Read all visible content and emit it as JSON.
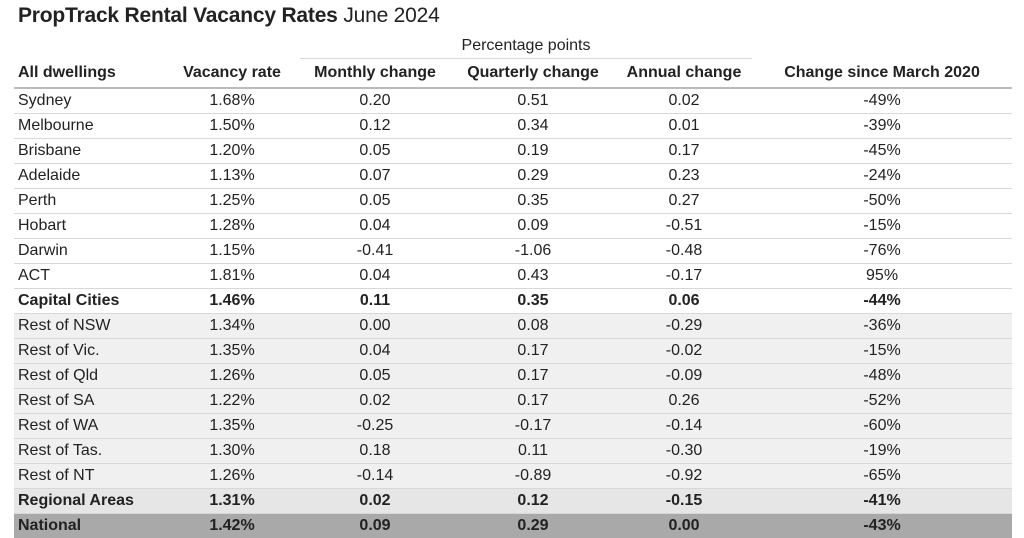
{
  "title": {
    "bold": "PropTrack Rental Vacancy Rates",
    "rest": "June 2024"
  },
  "group_header": "Percentage points",
  "columns": [
    "All dwellings",
    "Vacancy rate",
    "Monthly change",
    "Quarterly change",
    "Annual change",
    "Change since March 2020"
  ],
  "capital_rows": [
    [
      "Sydney",
      "1.68%",
      "0.20",
      "0.51",
      "0.02",
      "-49%"
    ],
    [
      "Melbourne",
      "1.50%",
      "0.12",
      "0.34",
      "0.01",
      "-39%"
    ],
    [
      "Brisbane",
      "1.20%",
      "0.05",
      "0.19",
      "0.17",
      "-45%"
    ],
    [
      "Adelaide",
      "1.13%",
      "0.07",
      "0.29",
      "0.23",
      "-24%"
    ],
    [
      "Perth",
      "1.25%",
      "0.05",
      "0.35",
      "0.27",
      "-50%"
    ],
    [
      "Hobart",
      "1.28%",
      "0.04",
      "0.09",
      "-0.51",
      "-15%"
    ],
    [
      "Darwin",
      "1.15%",
      "-0.41",
      "-1.06",
      "-0.48",
      "-76%"
    ],
    [
      "ACT",
      "1.81%",
      "0.04",
      "0.43",
      "-0.17",
      "95%"
    ]
  ],
  "capital_total": [
    "Capital Cities",
    "1.46%",
    "0.11",
    "0.35",
    "0.06",
    "-44%"
  ],
  "regional_rows": [
    [
      "Rest of NSW",
      "1.34%",
      "0.00",
      "0.08",
      "-0.29",
      "-36%"
    ],
    [
      "Rest of Vic.",
      "1.35%",
      "0.04",
      "0.17",
      "-0.02",
      "-15%"
    ],
    [
      "Rest of Qld",
      "1.26%",
      "0.05",
      "0.17",
      "-0.09",
      "-48%"
    ],
    [
      "Rest of SA",
      "1.22%",
      "0.02",
      "0.17",
      "0.26",
      "-52%"
    ],
    [
      "Rest of WA",
      "1.35%",
      "-0.25",
      "-0.17",
      "-0.14",
      "-60%"
    ],
    [
      "Rest of Tas.",
      "1.30%",
      "0.18",
      "0.11",
      "-0.30",
      "-19%"
    ],
    [
      "Rest of NT",
      "1.26%",
      "-0.14",
      "-0.89",
      "-0.92",
      "-65%"
    ]
  ],
  "regional_total": [
    "Regional Areas",
    "1.31%",
    "0.02",
    "0.12",
    "-0.15",
    "-41%"
  ],
  "national_total": [
    "National",
    "1.42%",
    "0.09",
    "0.29",
    "0.00",
    "-43%"
  ]
}
